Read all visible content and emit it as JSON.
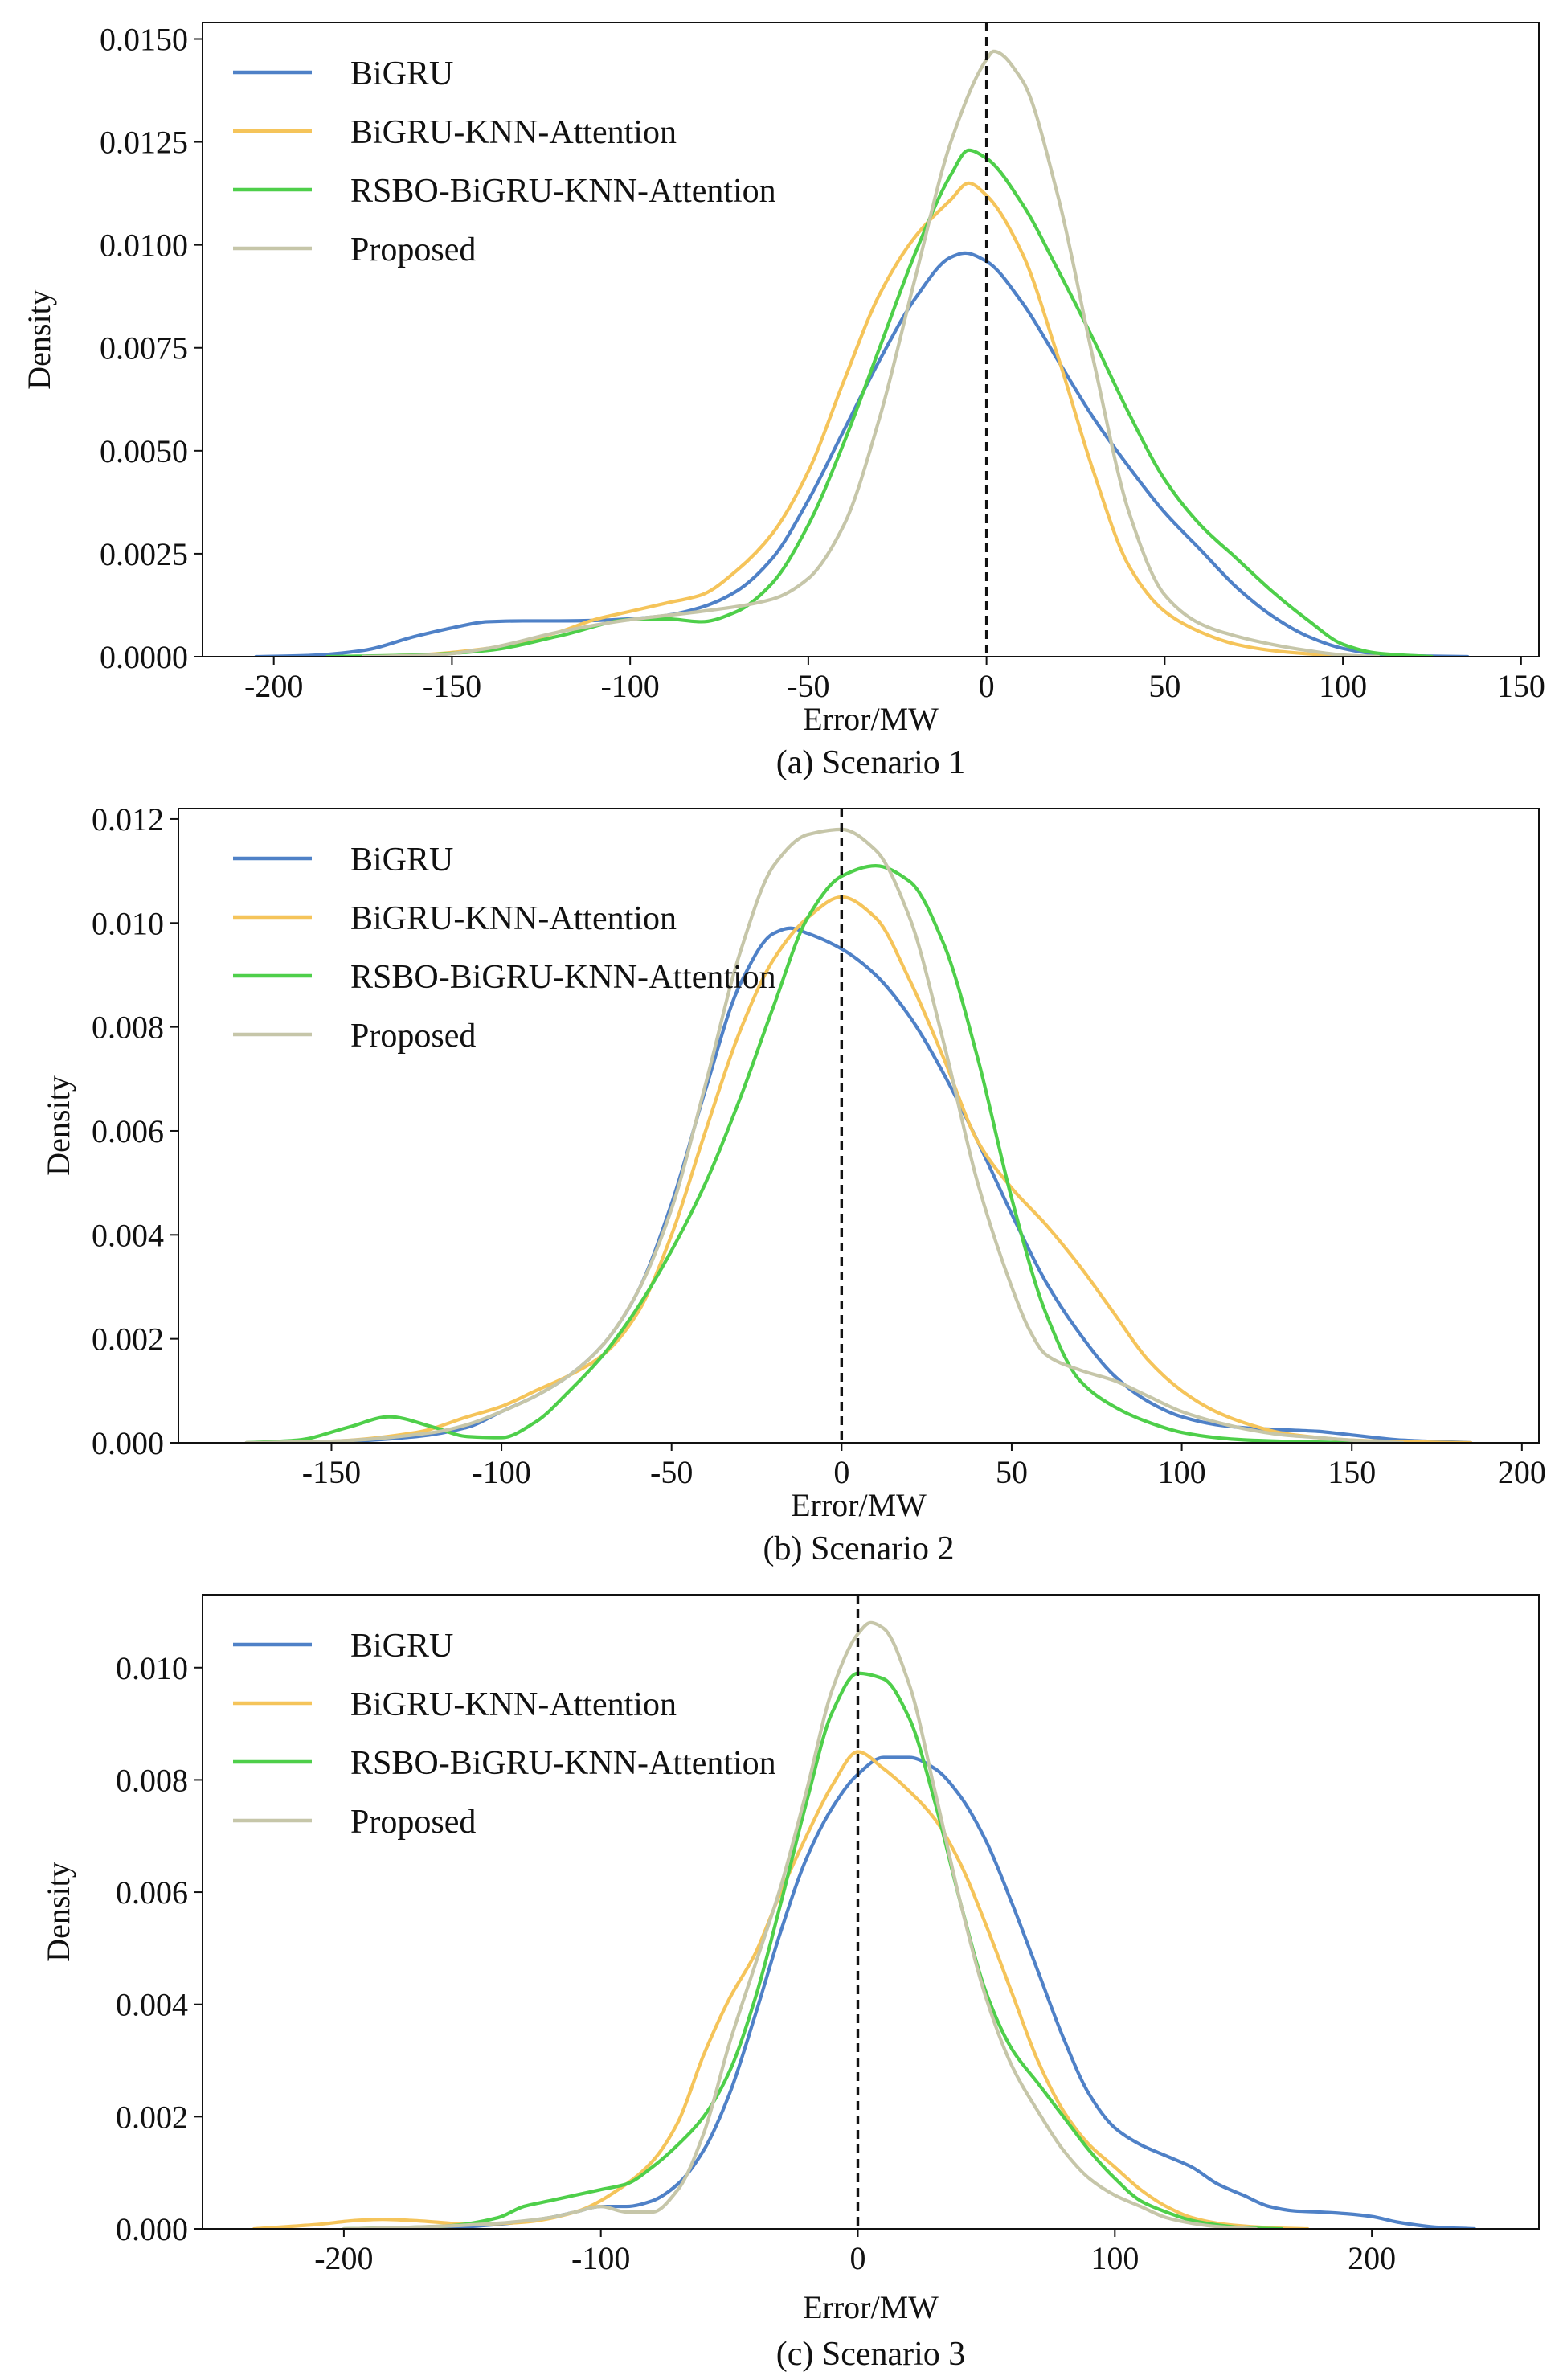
{
  "colors": {
    "bigru": "#4f81c7",
    "bigru_knn_attention": "#f5c45a",
    "rsbo": "#4ecf4a",
    "proposed": "#c6c6a9",
    "zero_line": "#111111"
  },
  "chart_data": [
    {
      "type": "line",
      "subtype": "kde-density",
      "caption": "(a) Scenario 1",
      "xlabel": "Error/MW",
      "ylabel": "Density",
      "xlim": [
        -220,
        155
      ],
      "ylim": [
        0,
        0.0154
      ],
      "xticks": [
        -200,
        -150,
        -100,
        -50,
        0,
        50,
        100,
        150
      ],
      "xtick_labels": [
        "-200",
        "-150",
        "-100",
        "-50",
        "0",
        "50",
        "100",
        "150"
      ],
      "yticks": [
        0,
        0.0025,
        0.005,
        0.0075,
        0.01,
        0.0125,
        0.015
      ],
      "ytick_labels": [
        "0.0000",
        "0.0025",
        "0.0050",
        "0.0075",
        "0.0100",
        "0.0125",
        "0.0150"
      ],
      "vline_x": 0,
      "legend": [
        "BiGRU",
        "BiGRU-KNN-Attention",
        "RSBO-BiGRU-KNN-Attention",
        "Proposed"
      ],
      "legend_position": "top-left",
      "series": [
        {
          "name": "BiGRU",
          "color_key": "bigru",
          "x": [
            -205,
            -190,
            -175,
            -160,
            -150,
            -140,
            -130,
            -120,
            -110,
            -100,
            -90,
            -80,
            -70,
            -60,
            -50,
            -40,
            -30,
            -20,
            -10,
            -6,
            0,
            10,
            20,
            30,
            40,
            50,
            60,
            70,
            80,
            90,
            100,
            110,
            120,
            135
          ],
          "y": [
            0,
            3e-05,
            0.00015,
            0.0005,
            0.0007,
            0.00085,
            0.00087,
            0.00087,
            0.00088,
            0.00092,
            0.001,
            0.0012,
            0.0016,
            0.0024,
            0.0038,
            0.0055,
            0.0072,
            0.0087,
            0.0097,
            0.0098,
            0.0096,
            0.0086,
            0.0072,
            0.0058,
            0.0046,
            0.0035,
            0.0026,
            0.0017,
            0.001,
            0.0005,
            0.0002,
            6e-05,
            2e-05,
            0
          ]
        },
        {
          "name": "BiGRU-KNN-Attention",
          "color_key": "bigru_knn_attention",
          "x": [
            -180,
            -160,
            -140,
            -120,
            -110,
            -100,
            -90,
            -80,
            -70,
            -60,
            -50,
            -40,
            -30,
            -20,
            -10,
            -5,
            0,
            10,
            20,
            30,
            40,
            50,
            60,
            70,
            80,
            90,
            100,
            110
          ],
          "y": [
            0,
            4e-05,
            0.0002,
            0.0006,
            0.0009,
            0.0011,
            0.0013,
            0.0015,
            0.0021,
            0.003,
            0.0045,
            0.0067,
            0.0088,
            0.0102,
            0.0111,
            0.0115,
            0.0112,
            0.0098,
            0.0073,
            0.0045,
            0.0022,
            0.0011,
            0.0006,
            0.0003,
            0.00015,
            7e-05,
            2e-05,
            0
          ]
        },
        {
          "name": "RSBO-BiGRU-KNN-Attention",
          "color_key": "rsbo",
          "x": [
            -185,
            -160,
            -140,
            -120,
            -100,
            -90,
            -80,
            -70,
            -60,
            -50,
            -40,
            -30,
            -20,
            -10,
            -5,
            0,
            10,
            20,
            30,
            40,
            50,
            60,
            70,
            80,
            90,
            100,
            110,
            125
          ],
          "y": [
            0,
            4e-05,
            0.00015,
            0.0005,
            0.0009,
            0.00092,
            0.00085,
            0.0011,
            0.0018,
            0.0032,
            0.0052,
            0.0075,
            0.0098,
            0.0117,
            0.0123,
            0.0121,
            0.011,
            0.0094,
            0.0077,
            0.0059,
            0.0043,
            0.0032,
            0.0024,
            0.0016,
            0.0009,
            0.0003,
            8e-05,
            0
          ]
        },
        {
          "name": "Proposed",
          "color_key": "proposed",
          "x": [
            -175,
            -155,
            -140,
            -120,
            -100,
            -90,
            -80,
            -60,
            -50,
            -40,
            -30,
            -20,
            -10,
            0,
            2,
            10,
            20,
            30,
            40,
            50,
            60,
            70,
            80,
            90,
            100,
            110
          ],
          "y": [
            0,
            4e-05,
            0.0002,
            0.0006,
            0.0009,
            0.001,
            0.0011,
            0.0014,
            0.0019,
            0.0032,
            0.0058,
            0.0092,
            0.0125,
            0.0145,
            0.0147,
            0.014,
            0.0112,
            0.0072,
            0.0035,
            0.0015,
            0.0008,
            0.0005,
            0.0003,
            0.00015,
            4e-05,
            0
          ]
        }
      ]
    },
    {
      "type": "line",
      "subtype": "kde-density",
      "caption": "(b) Scenario 2",
      "xlabel": "Error/MW",
      "ylabel": "Density",
      "xlim": [
        -195,
        205
      ],
      "ylim": [
        0,
        0.0122
      ],
      "xticks": [
        -150,
        -100,
        -50,
        0,
        50,
        100,
        150,
        200
      ],
      "xtick_labels": [
        "-150",
        "-100",
        "-50",
        "0",
        "50",
        "100",
        "150",
        "200"
      ],
      "yticks": [
        0,
        0.002,
        0.004,
        0.006,
        0.008,
        0.01,
        0.012
      ],
      "ytick_labels": [
        "0.000",
        "0.002",
        "0.004",
        "0.006",
        "0.008",
        "0.010",
        "0.012"
      ],
      "vline_x": 0,
      "legend": [
        "BiGRU",
        "BiGRU-KNN-Attention",
        "RSBO-BiGRU-KNN-Attention",
        "Proposed"
      ],
      "legend_position": "top-left",
      "series": [
        {
          "name": "BiGRU",
          "color_key": "bigru",
          "x": [
            -175,
            -150,
            -125,
            -110,
            -100,
            -90,
            -80,
            -70,
            -60,
            -50,
            -40,
            -30,
            -20,
            -15,
            -10,
            0,
            10,
            20,
            30,
            40,
            50,
            60,
            70,
            80,
            90,
            100,
            110,
            120,
            130,
            140,
            150,
            165,
            185
          ],
          "y": [
            0,
            2e-05,
            0.00012,
            0.0003,
            0.0006,
            0.0009,
            0.0013,
            0.0019,
            0.0029,
            0.0046,
            0.0068,
            0.0088,
            0.0098,
            0.0099,
            0.0098,
            0.0095,
            0.009,
            0.0082,
            0.0071,
            0.0058,
            0.0044,
            0.0031,
            0.0021,
            0.0013,
            0.0008,
            0.0005,
            0.00035,
            0.00028,
            0.00025,
            0.00022,
            0.00015,
            5e-05,
            0
          ]
        },
        {
          "name": "BiGRU-KNN-Attention",
          "color_key": "bigru_knn_attention",
          "x": [
            -175,
            -150,
            -125,
            -110,
            -100,
            -90,
            -80,
            -70,
            -60,
            -50,
            -40,
            -30,
            -20,
            -10,
            0,
            10,
            20,
            30,
            40,
            50,
            60,
            70,
            80,
            90,
            100,
            110,
            120,
            130,
            140,
            150,
            165,
            185
          ],
          "y": [
            0,
            3e-05,
            0.0002,
            0.0005,
            0.0007,
            0.001,
            0.0013,
            0.0017,
            0.0025,
            0.004,
            0.006,
            0.0079,
            0.0093,
            0.0101,
            0.0105,
            0.0101,
            0.0089,
            0.0074,
            0.0058,
            0.0049,
            0.0042,
            0.0034,
            0.0025,
            0.0016,
            0.001,
            0.0006,
            0.00035,
            0.00018,
            0.0001,
            5e-05,
            2e-05,
            0
          ]
        },
        {
          "name": "RSBO-BiGRU-KNN-Attention",
          "color_key": "rsbo",
          "x": [
            -175,
            -160,
            -145,
            -133,
            -120,
            -110,
            -100,
            -90,
            -80,
            -70,
            -60,
            -50,
            -40,
            -30,
            -20,
            -10,
            0,
            10,
            20,
            30,
            40,
            50,
            60,
            70,
            80,
            90,
            100,
            110,
            120,
            135,
            150
          ],
          "y": [
            0,
            5e-05,
            0.0003,
            0.0005,
            0.0003,
            0.00012,
            0.0001,
            0.0004,
            0.001,
            0.0017,
            0.0026,
            0.0037,
            0.005,
            0.0066,
            0.0084,
            0.0101,
            0.0109,
            0.0111,
            0.0108,
            0.0096,
            0.0074,
            0.0047,
            0.0025,
            0.0012,
            0.0007,
            0.0004,
            0.0002,
            0.0001,
            5e-05,
            2e-05,
            0
          ]
        },
        {
          "name": "Proposed",
          "color_key": "proposed",
          "x": [
            -175,
            -150,
            -120,
            -110,
            -100,
            -90,
            -80,
            -70,
            -60,
            -50,
            -40,
            -30,
            -20,
            -10,
            0,
            10,
            20,
            30,
            40,
            50,
            55,
            60,
            70,
            80,
            90,
            100,
            110,
            120,
            130,
            140,
            150,
            165
          ],
          "y": [
            0,
            3e-05,
            0.0002,
            0.00035,
            0.0006,
            0.0009,
            0.0013,
            0.0019,
            0.0029,
            0.0045,
            0.0069,
            0.0094,
            0.0111,
            0.0117,
            0.0118,
            0.0114,
            0.0101,
            0.0077,
            0.005,
            0.003,
            0.0022,
            0.0017,
            0.0014,
            0.0012,
            0.0009,
            0.0006,
            0.0004,
            0.00025,
            0.00015,
            0.0001,
            5e-05,
            0
          ]
        }
      ]
    },
    {
      "type": "line",
      "subtype": "kde-density",
      "caption": "(c) Scenario 3",
      "xlabel": "Error/MW",
      "ylabel": "Density",
      "xlim": [
        -255,
        265
      ],
      "ylim": [
        0,
        0.0113
      ],
      "xticks": [
        -200,
        -100,
        0,
        100,
        200
      ],
      "xtick_labels": [
        "-200",
        "-100",
        "0",
        "100",
        "200"
      ],
      "yticks": [
        0,
        0.002,
        0.004,
        0.006,
        0.008,
        0.01
      ],
      "ytick_labels": [
        "0.000",
        "0.002",
        "0.004",
        "0.006",
        "0.008",
        "0.010"
      ],
      "vline_x": 0,
      "legend": [
        "BiGRU",
        "BiGRU-KNN-Attention",
        "RSBO-BiGRU-KNN-Attention",
        "Proposed"
      ],
      "legend_position": "top-left",
      "series": [
        {
          "name": "BiGRU",
          "color_key": "bigru",
          "x": [
            -190,
            -160,
            -140,
            -120,
            -110,
            -100,
            -90,
            -80,
            -70,
            -60,
            -50,
            -40,
            -30,
            -20,
            -10,
            0,
            10,
            20,
            30,
            40,
            50,
            60,
            70,
            80,
            90,
            100,
            110,
            120,
            130,
            140,
            150,
            160,
            170,
            180,
            190,
            200,
            210,
            225,
            240
          ],
          "y": [
            0,
            2e-05,
            8e-05,
            0.0002,
            0.0003,
            0.0004,
            0.0004,
            0.0005,
            0.0008,
            0.0014,
            0.0024,
            0.0038,
            0.0053,
            0.0066,
            0.0075,
            0.0081,
            0.0084,
            0.0084,
            0.0082,
            0.0077,
            0.0069,
            0.0058,
            0.0046,
            0.0034,
            0.0024,
            0.0018,
            0.0015,
            0.0013,
            0.0011,
            0.0008,
            0.0006,
            0.0004,
            0.00032,
            0.0003,
            0.00027,
            0.00022,
            0.00012,
            3e-05,
            0
          ]
        },
        {
          "name": "BiGRU-KNN-Attention",
          "color_key": "bigru_knn_attention",
          "x": [
            -235,
            -210,
            -195,
            -185,
            -170,
            -150,
            -130,
            -110,
            -90,
            -80,
            -70,
            -60,
            -50,
            -40,
            -30,
            -20,
            -10,
            0,
            10,
            20,
            30,
            40,
            50,
            60,
            70,
            80,
            90,
            100,
            110,
            120,
            130,
            140,
            150,
            160,
            175
          ],
          "y": [
            0,
            8e-05,
            0.00015,
            0.00017,
            0.00014,
            8e-05,
            0.00012,
            0.0003,
            0.0008,
            0.0012,
            0.0019,
            0.0031,
            0.0041,
            0.0049,
            0.006,
            0.007,
            0.0079,
            0.0085,
            0.0082,
            0.0078,
            0.0073,
            0.0065,
            0.0054,
            0.0042,
            0.003,
            0.0021,
            0.0015,
            0.0011,
            0.0007,
            0.0004,
            0.0002,
            0.0001,
            5e-05,
            2e-05,
            0
          ]
        },
        {
          "name": "RSBO-BiGRU-KNN-Attention",
          "color_key": "rsbo",
          "x": [
            -200,
            -180,
            -160,
            -140,
            -130,
            -120,
            -110,
            -100,
            -90,
            -80,
            -70,
            -60,
            -50,
            -40,
            -30,
            -20,
            -10,
            0,
            10,
            20,
            30,
            40,
            50,
            60,
            70,
            80,
            90,
            100,
            110,
            120,
            130,
            140,
            150,
            165
          ],
          "y": [
            0,
            2e-05,
            5e-05,
            0.0002,
            0.0004,
            0.0005,
            0.0006,
            0.0007,
            0.0008,
            0.0011,
            0.0015,
            0.002,
            0.0028,
            0.0041,
            0.0058,
            0.0076,
            0.0092,
            0.0099,
            0.0098,
            0.0091,
            0.0076,
            0.0058,
            0.0042,
            0.0032,
            0.0026,
            0.002,
            0.0014,
            0.0009,
            0.0005,
            0.0003,
            0.00015,
            7e-05,
            2e-05,
            0
          ]
        },
        {
          "name": "Proposed",
          "color_key": "proposed",
          "x": [
            -200,
            -180,
            -160,
            -140,
            -120,
            -110,
            -100,
            -90,
            -80,
            -70,
            -60,
            -50,
            -40,
            -30,
            -20,
            -10,
            0,
            5,
            10,
            20,
            30,
            40,
            50,
            60,
            70,
            80,
            90,
            100,
            110,
            120,
            130,
            140,
            155
          ],
          "y": [
            0,
            2e-05,
            5e-05,
            0.0001,
            0.0002,
            0.0003,
            0.0004,
            0.0003,
            0.0003,
            0.0007,
            0.0017,
            0.0033,
            0.0047,
            0.0061,
            0.0078,
            0.0096,
            0.0106,
            0.0108,
            0.0107,
            0.0097,
            0.0078,
            0.0058,
            0.0041,
            0.0029,
            0.0021,
            0.0014,
            0.0009,
            0.0006,
            0.0004,
            0.0002,
            0.0001,
            4e-05,
            0
          ]
        }
      ]
    }
  ]
}
